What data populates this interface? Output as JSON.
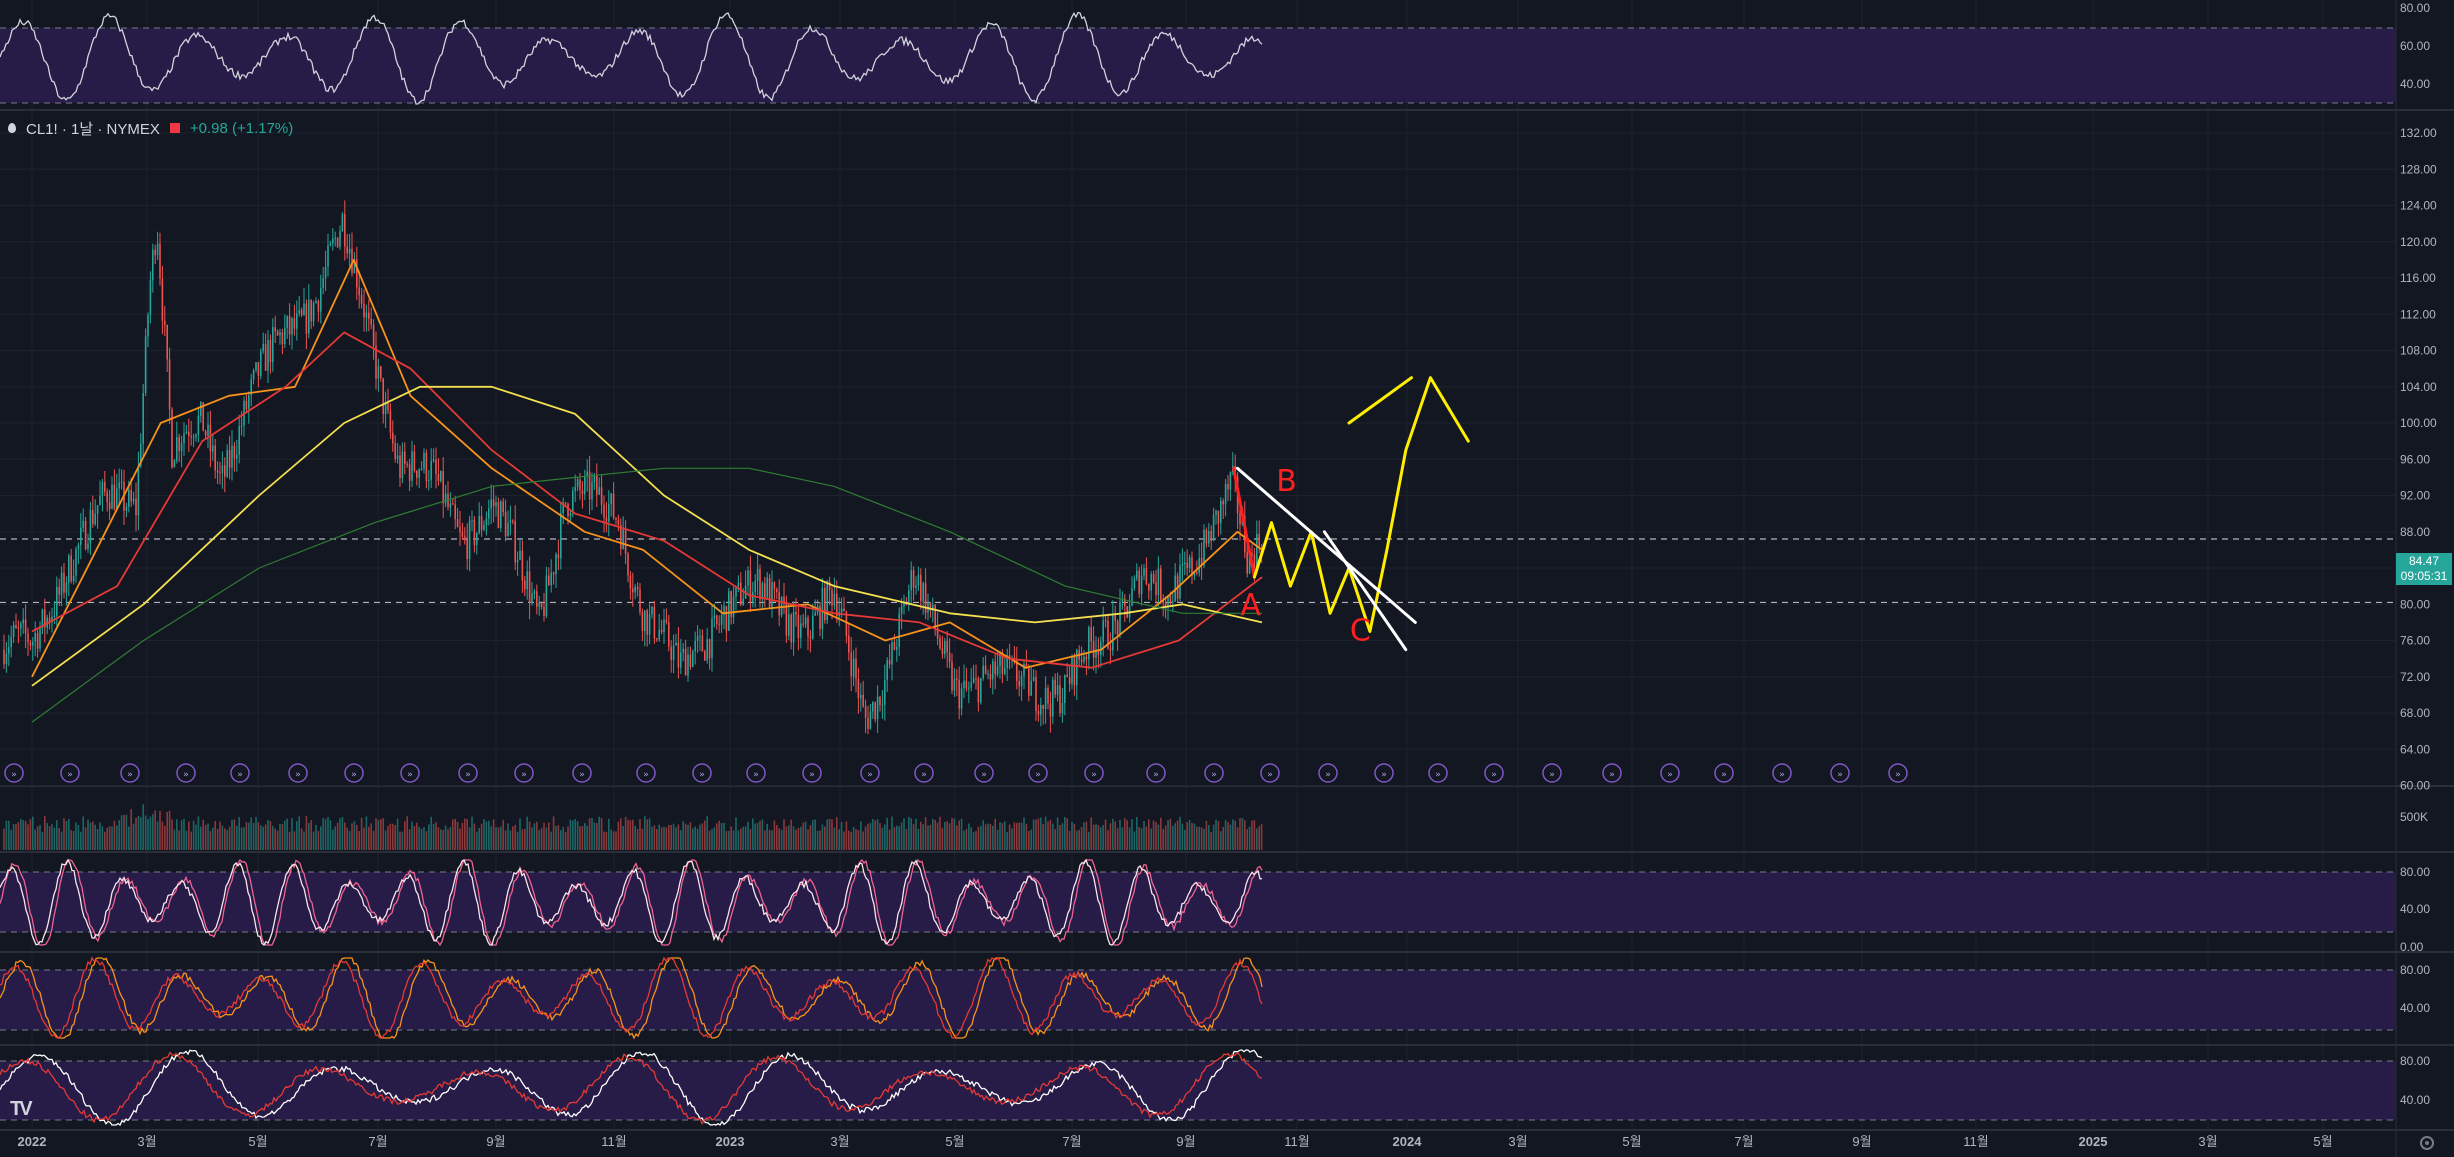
{
  "legend": {
    "symbol": "CL1! · 1날 · NYMEX",
    "change": "+0.98 (+1.17%)",
    "change_color": "#26a69a",
    "flag_color": "#f23645",
    "icons": [
      "drop-icon",
      "flag-icon"
    ]
  },
  "price_tag": {
    "price": "84.47",
    "timer": "09:05:31",
    "color": "#26a69a"
  },
  "logo": "TV",
  "colors": {
    "background": "#131722",
    "grid": "#1e222d",
    "up": "#26a69a",
    "down": "#ef5350",
    "ma_fast": "#f7931a",
    "ma_mid": "#e53935",
    "ma_slow": "#f5e050",
    "ma_200": "#2e7d32",
    "indicator_band": "#2a1d4d",
    "drawing_red": "#ff1f1f",
    "drawing_yellow": "#ffee00",
    "drawing_white": "#ffffff"
  },
  "chart_data": {
    "type": "line",
    "panes": {
      "rsi_top": {
        "ticks": [
          "80.00",
          "60.00",
          "40.00"
        ],
        "ylim": [
          30,
          90
        ],
        "bands": [
          70,
          30
        ]
      },
      "price": {
        "ticks": [
          "132.00",
          "128.00",
          "124.00",
          "120.00",
          "116.00",
          "112.00",
          "108.00",
          "104.00",
          "100.00",
          "96.00",
          "92.00",
          "88.00",
          "84.00",
          "80.00",
          "76.00",
          "72.00",
          "68.00",
          "64.00",
          "60.00"
        ],
        "ylim": [
          60,
          134
        ],
        "dashed_levels": [
          87.2,
          80.2
        ]
      },
      "volume": {
        "ticks": [
          "500K"
        ]
      },
      "stoch_1": {
        "ticks": [
          "80.00",
          "40.00",
          "0.00"
        ],
        "ylim": [
          0,
          100
        ],
        "bands": [
          80,
          20
        ]
      },
      "stoch_2": {
        "ticks": [
          "80.00",
          "40.00"
        ],
        "ylim": [
          0,
          100
        ],
        "bands": [
          80,
          20
        ]
      },
      "stoch_3": {
        "ticks": [
          "80.00",
          "40.00"
        ],
        "ylim": [
          0,
          100
        ],
        "bands": [
          80,
          20
        ]
      }
    },
    "x_axis": {
      "ticks": [
        "2022",
        "3월",
        "5월",
        "7월",
        "9월",
        "11월",
        "2023",
        "3월",
        "5월",
        "7월",
        "9월",
        "11월",
        "2024",
        "3월",
        "5월",
        "7월",
        "9월",
        "11월",
        "2025",
        "3월",
        "5월"
      ],
      "bold": [
        "2022",
        "2023",
        "2024",
        "2025"
      ]
    },
    "close_series": {
      "name": "CL1!",
      "dates": [
        "2022-01-01",
        "2022-01-20",
        "2022-02-10",
        "2022-02-25",
        "2022-03-04",
        "2022-03-08",
        "2022-03-16",
        "2022-04-01",
        "2022-04-11",
        "2022-04-25",
        "2022-05-15",
        "2022-06-01",
        "2022-06-14",
        "2022-07-01",
        "2022-07-14",
        "2022-08-01",
        "2022-08-16",
        "2022-09-01",
        "2022-09-26",
        "2022-10-10",
        "2022-11-07",
        "2022-11-20",
        "2022-12-09",
        "2023-01-01",
        "2023-01-20",
        "2023-02-15",
        "2023-03-01",
        "2023-03-17",
        "2023-03-28",
        "2023-04-12",
        "2023-05-04",
        "2023-05-25",
        "2023-06-12",
        "2023-06-30",
        "2023-07-20",
        "2023-08-10",
        "2023-08-24",
        "2023-09-15",
        "2023-09-27",
        "2023-10-06",
        "2023-10-13"
      ],
      "values": [
        75,
        85,
        91,
        92,
        116,
        123,
        96,
        100,
        95,
        102,
        110,
        115,
        121,
        108,
        96,
        93,
        88,
        91,
        79,
        92,
        90,
        80,
        72,
        80,
        81,
        78,
        80,
        68,
        73,
        82,
        72,
        71,
        72,
        70,
        76,
        84,
        79,
        89,
        93,
        83,
        87
      ]
    },
    "ma_series": [
      {
        "name": "",
        "color": "#f7931a",
        "dates": [
          "2022-01-01",
          "2022-03-10",
          "2022-04-15",
          "2022-05-20",
          "2022-06-20",
          "2022-07-20",
          "2022-09-01",
          "2022-10-20",
          "2022-11-20",
          "2023-01-01",
          "2023-02-15",
          "2023-03-28",
          "2023-05-01",
          "2023-06-10",
          "2023-07-20",
          "2023-08-25",
          "2023-09-30",
          "2023-10-13"
        ],
        "values": [
          72,
          100,
          103,
          104,
          118,
          103,
          95,
          88,
          86,
          79,
          80,
          76,
          78,
          73,
          75,
          81,
          88,
          86
        ]
      },
      {
        "name": "",
        "color": "#e53935",
        "dates": [
          "2022-01-01",
          "2022-02-15",
          "2022-04-01",
          "2022-05-15",
          "2022-06-15",
          "2022-07-20",
          "2022-09-01",
          "2022-10-15",
          "2022-12-01",
          "2023-01-15",
          "2023-03-01",
          "2023-04-15",
          "2023-06-01",
          "2023-07-15",
          "2023-08-30",
          "2023-10-13"
        ],
        "values": [
          77,
          82,
          98,
          104,
          110,
          106,
          97,
          90,
          87,
          81,
          79,
          78,
          74,
          73,
          76,
          83
        ]
      },
      {
        "name": "",
        "color": "#f5e050",
        "dates": [
          "2022-01-01",
          "2022-03-01",
          "2022-05-01",
          "2022-06-15",
          "2022-07-25",
          "2022-09-01",
          "2022-10-15",
          "2022-12-01",
          "2023-01-15",
          "2023-03-01",
          "2023-05-01",
          "2023-06-15",
          "2023-08-01",
          "2023-09-01",
          "2023-10-13"
        ],
        "values": [
          71,
          80,
          92,
          100,
          104,
          104,
          101,
          92,
          86,
          82,
          79,
          78,
          79,
          80,
          78
        ]
      },
      {
        "name": "",
        "color": "#2e7d32",
        "dates": [
          "2022-01-01",
          "2022-03-01",
          "2022-05-01",
          "2022-07-01",
          "2022-09-01",
          "2022-10-15",
          "2022-12-01",
          "2023-01-15",
          "2023-03-01",
          "2023-05-01",
          "2023-07-01",
          "2023-09-01",
          "2023-10-13"
        ],
        "values": [
          67,
          76,
          84,
          89,
          93,
          94,
          95,
          95,
          93,
          88,
          82,
          79,
          79
        ]
      }
    ],
    "drawings": [
      {
        "name": "red-impulse",
        "color": "#ff1f1f",
        "dates": [
          "2023-09-28",
          "2023-10-09",
          "2023-10-18"
        ],
        "values": [
          95,
          83,
          89
        ]
      },
      {
        "name": "yellow-zigzag",
        "color": "#ffee00",
        "dates": [
          "2023-10-09",
          "2023-10-18",
          "2023-10-28",
          "2023-11-08",
          "2023-11-18",
          "2023-11-28",
          "2023-12-09",
          "2023-12-18"
        ],
        "values": [
          83,
          89,
          82,
          88,
          79,
          84,
          77,
          86
        ]
      },
      {
        "name": "yellow-projection",
        "color": "#ffee00",
        "dates": [
          "2023-12-18",
          "2023-12-28",
          "2024-01-10",
          "2024-01-30"
        ],
        "values": [
          86,
          97,
          105,
          98
        ]
      },
      {
        "name": "yellow-return",
        "color": "#ffee00",
        "dates": [
          "2023-11-28",
          "2023-12-31"
        ],
        "values": [
          100,
          105
        ]
      },
      {
        "name": "white-trendline",
        "color": "#ffffff",
        "dates": [
          "2023-09-30",
          "2024-01-02"
        ],
        "values": [
          95,
          78
        ]
      },
      {
        "name": "white-channel",
        "color": "#ffffff",
        "dates": [
          "2023-11-15",
          "2023-12-28"
        ],
        "values": [
          88,
          75
        ]
      }
    ],
    "labels": [
      {
        "text": "B",
        "date": "2023-10-26",
        "value": 92.5,
        "color": "#ff1f1f"
      },
      {
        "text": "A",
        "date": "2023-10-07",
        "value": 78.8,
        "color": "#ff1f1f"
      },
      {
        "text": "C",
        "date": "2023-12-04",
        "value": 76.0,
        "color": "#ff1f1f"
      }
    ]
  }
}
